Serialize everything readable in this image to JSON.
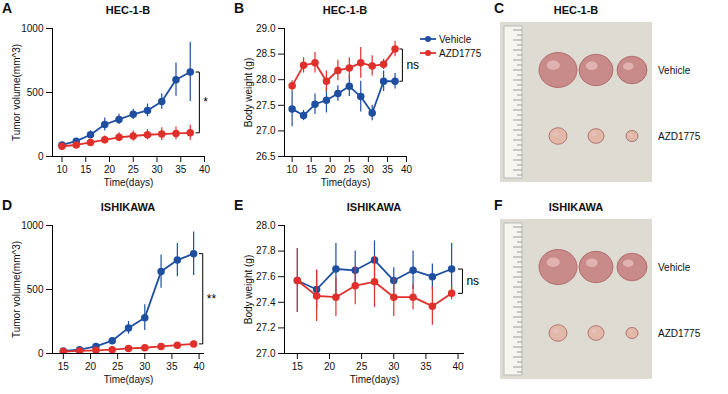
{
  "chart_data": [
    {
      "type": "line",
      "panel_label": "A",
      "title": "HEC-1-B",
      "x_label": "Time(days)",
      "y_label": "Tumor volume(mm^3)",
      "x": [
        10,
        13,
        16,
        19,
        22,
        25,
        28,
        31,
        34,
        37
      ],
      "xlim": [
        8,
        40
      ],
      "xticks": [
        10,
        15,
        20,
        25,
        30,
        35,
        40
      ],
      "ylim": [
        0,
        1000
      ],
      "yticks": [
        0,
        500,
        1000
      ],
      "marker": "circle",
      "series": [
        {
          "name": "Vehicle",
          "color": "#1f4fa0",
          "values": [
            90,
            120,
            170,
            250,
            290,
            330,
            360,
            430,
            600,
            660
          ],
          "errors": [
            20,
            20,
            30,
            50,
            40,
            40,
            50,
            60,
            130,
            230
          ]
        },
        {
          "name": "AZD1775",
          "color": "#e0302c",
          "values": [
            80,
            90,
            110,
            130,
            150,
            160,
            170,
            175,
            180,
            185
          ],
          "errors": [
            20,
            20,
            25,
            30,
            35,
            40,
            40,
            50,
            50,
            60
          ]
        }
      ],
      "annotations": [
        {
          "text": "*"
        }
      ]
    },
    {
      "type": "line",
      "panel_label": "B",
      "title": "HEC-1-B",
      "x_label": "Time(days)",
      "y_label": "Body weight (g)",
      "x": [
        10,
        13,
        16,
        19,
        22,
        25,
        28,
        31,
        34,
        37
      ],
      "xlim": [
        8,
        40
      ],
      "xticks": [
        10,
        15,
        20,
        25,
        30,
        35,
        40
      ],
      "ylim": [
        26.5,
        29
      ],
      "yticks": [
        26.5,
        {
          "value": 27,
          "label": "27.0"
        },
        27.5,
        {
          "value": 28,
          "label": "28.0"
        },
        28.5,
        {
          "value": 29,
          "label": "29.0"
        }
      ],
      "marker": "circle",
      "legend": "right",
      "series": [
        {
          "name": "Vehicle",
          "color": "#1f4fa0",
          "values": [
            27.43,
            27.3,
            27.52,
            27.6,
            27.73,
            27.87,
            27.67,
            27.35,
            27.97,
            27.97
          ],
          "errors": [
            0.35,
            0.1,
            0.2,
            0.25,
            0.15,
            0.2,
            0.3,
            0.15,
            0.2,
            0.15
          ]
        },
        {
          "name": "AZD1775",
          "color": "#e0302c",
          "values": [
            27.88,
            28.28,
            28.33,
            27.97,
            28.18,
            28.23,
            28.33,
            28.27,
            28.3,
            28.6
          ],
          "errors": [
            0.1,
            0.15,
            0.2,
            0.2,
            0.2,
            0.2,
            0.3,
            0.2,
            0.1,
            0.15
          ]
        }
      ],
      "annotations": [
        {
          "text": "ns"
        }
      ]
    },
    {
      "type": "line",
      "panel_label": "D",
      "title": "ISHIKAWA",
      "x_label": "Time(days)",
      "y_label": "Tumor volume(mm^3)",
      "x": [
        15,
        18,
        21,
        24,
        27,
        30,
        33,
        36,
        39
      ],
      "xlim": [
        13,
        41
      ],
      "xticks": [
        15,
        20,
        25,
        30,
        35,
        40
      ],
      "ylim": [
        0,
        1000
      ],
      "yticks": [
        0,
        500,
        1000
      ],
      "marker": "circle",
      "series": [
        {
          "name": "Vehicle",
          "color": "#1f4fa0",
          "values": [
            20,
            30,
            55,
            100,
            200,
            280,
            640,
            730,
            780
          ],
          "errors": [
            5,
            10,
            15,
            25,
            50,
            100,
            130,
            130,
            170
          ]
        },
        {
          "name": "AZD1775",
          "color": "#e0302c",
          "values": [
            15,
            20,
            25,
            30,
            40,
            45,
            55,
            65,
            75
          ],
          "errors": [
            5,
            5,
            5,
            10,
            10,
            10,
            15,
            20,
            25
          ]
        }
      ],
      "annotations": [
        {
          "text": "**"
        }
      ]
    },
    {
      "type": "line",
      "panel_label": "E",
      "title": "ISHIKAWA",
      "x_label": "Time(days)",
      "y_label": "Body weight (g)",
      "x": [
        15,
        18,
        21,
        24,
        27,
        30,
        33,
        36,
        39
      ],
      "xlim": [
        13,
        41
      ],
      "xticks": [
        15,
        20,
        25,
        30,
        35,
        40
      ],
      "ylim": [
        27,
        28
      ],
      "yticks": [
        {
          "value": 27,
          "label": "27.0"
        },
        27.2,
        27.4,
        27.6,
        27.8,
        {
          "value": 28,
          "label": "28.0"
        }
      ],
      "marker": "circle",
      "series": [
        {
          "name": "Vehicle",
          "color": "#1f4fa0",
          "values": [
            27.57,
            27.5,
            27.66,
            27.65,
            27.73,
            27.57,
            27.65,
            27.6,
            27.66
          ],
          "errors": [
            0.25,
            0.15,
            0.2,
            0.15,
            0.15,
            0.1,
            0.15,
            0.1,
            0.2
          ]
        },
        {
          "name": "AZD1775",
          "color": "#e0302c",
          "values": [
            27.57,
            27.45,
            27.44,
            27.53,
            27.56,
            27.44,
            27.44,
            27.37,
            27.47
          ],
          "errors": [
            0.25,
            0.2,
            0.15,
            0.15,
            0.2,
            0.15,
            0.1,
            0.15,
            0.05
          ]
        }
      ],
      "annotations": [
        {
          "text": "ns"
        }
      ]
    }
  ],
  "photos": [
    {
      "panel_label": "C",
      "title": "HEC-1-B",
      "rows": [
        "Vehicle",
        "AZD1775"
      ]
    },
    {
      "panel_label": "F",
      "title": "ISHIKAWA",
      "rows": [
        "Vehicle",
        "AZD1775"
      ]
    }
  ]
}
